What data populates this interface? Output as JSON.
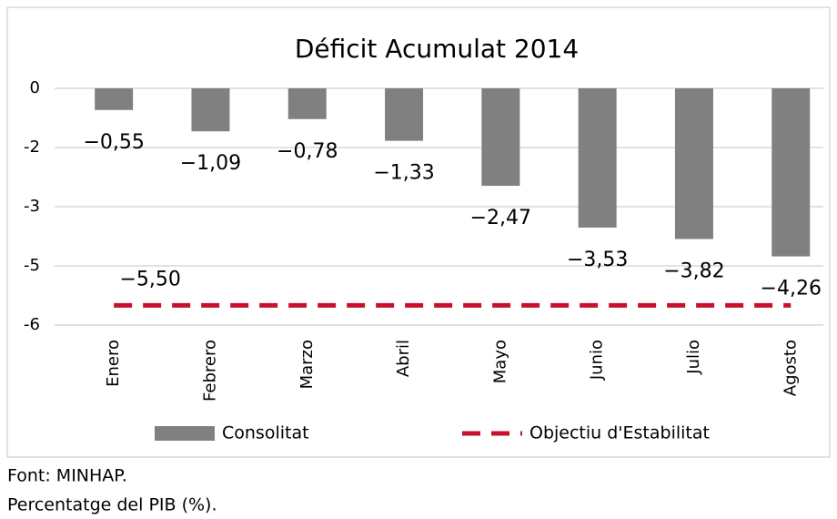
{
  "chart_data": {
    "type": "bar",
    "title": "Déficit Acumulat 2014",
    "categories": [
      "Enero",
      "Febrero",
      "Marzo",
      "Abril",
      "Mayo",
      "Junio",
      "Julio",
      "Agosto"
    ],
    "series": [
      {
        "name": "Consolitat",
        "color": "#808080",
        "type": "bar",
        "values": [
          -0.55,
          -1.09,
          -0.78,
          -1.33,
          -2.47,
          -3.53,
          -3.82,
          -4.26
        ],
        "value_labels": [
          "−0,55",
          "−1,09",
          "−0,78",
          "−1,33",
          "−2,47",
          "−3,53",
          "−3,82",
          "−4,26"
        ]
      },
      {
        "name": "Objectiu d'Estabilitat",
        "color": "#c8102e",
        "type": "line",
        "dashed": true,
        "values": [
          -5.5,
          -5.5,
          -5.5,
          -5.5,
          -5.5,
          -5.5,
          -5.5,
          -5.5
        ],
        "value_labels": [
          "−5,50",
          null,
          null,
          null,
          null,
          null,
          null,
          null
        ]
      }
    ],
    "ylim": [
      -6,
      0
    ],
    "yticks": [
      0,
      {
        "value": -1.5,
        "label": "-2"
      },
      -3,
      {
        "value": -4.5,
        "label": "-5"
      },
      -6
    ],
    "grid": true,
    "legend": "bottom",
    "notes": [
      "Font: MINHAP.",
      "Percentatge del PIB (%)."
    ]
  }
}
